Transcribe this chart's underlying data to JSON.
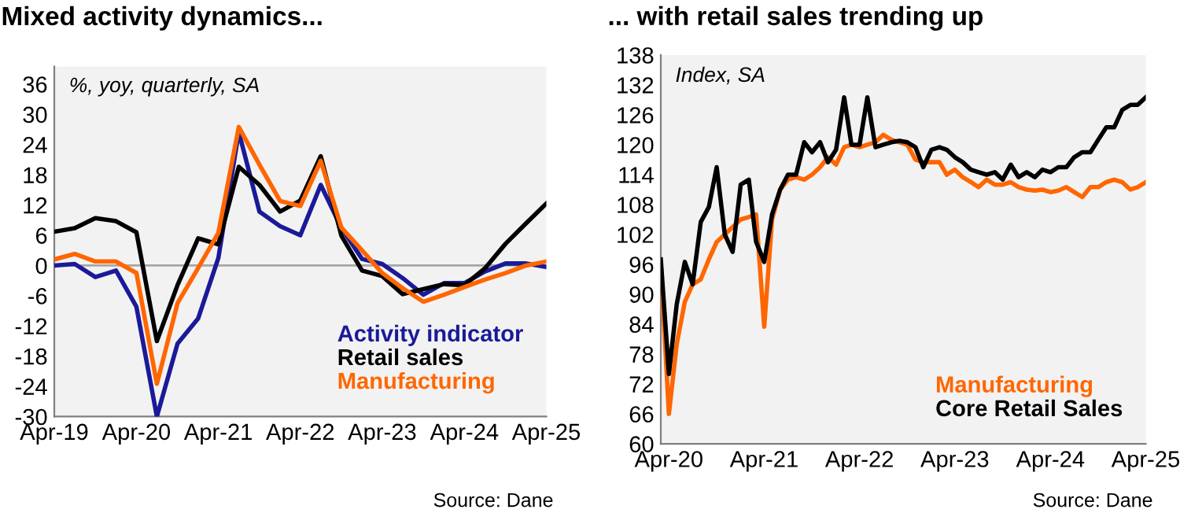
{
  "chart_data": [
    {
      "type": "line",
      "title": "Mixed activity dynamics...",
      "subtitle": "%, yoy, quarterly, SA",
      "x": [
        "2019-04",
        "2019-07",
        "2019-10",
        "2020-01",
        "2020-04",
        "2020-07",
        "2020-10",
        "2021-01",
        "2021-04",
        "2021-07",
        "2021-10",
        "2022-01",
        "2022-04",
        "2022-07",
        "2022-10",
        "2023-01",
        "2023-04",
        "2023-07",
        "2023-10",
        "2024-01",
        "2024-04",
        "2024-07",
        "2024-10",
        "2025-01",
        "2025-04"
      ],
      "series": [
        {
          "name": "Activity indicator",
          "color": "#1a1a99",
          "values": [
            0,
            0.3,
            -2.3,
            -1,
            -8.2,
            -30,
            -15.5,
            -10.5,
            1.5,
            26.5,
            10.7,
            7.8,
            6,
            16,
            7.5,
            1.3,
            0.3,
            -2.5,
            -5.8,
            -3.5,
            -3.5,
            -1.2,
            0.4,
            0.4,
            -0.3
          ]
        },
        {
          "name": "Retail sales",
          "color": "#000000",
          "values": [
            6.7,
            7.4,
            9.4,
            8.8,
            6.6,
            -15,
            -3.9,
            5.4,
            4.2,
            19.6,
            16,
            10.7,
            12.9,
            21.7,
            5.9,
            -1,
            -2.1,
            -5.7,
            -4.7,
            -3.7,
            -3.9,
            -0.6,
            4.3,
            8.4,
            12.3
          ]
        },
        {
          "name": "Manufacturing",
          "color": "#ff6600",
          "values": [
            1.2,
            2.3,
            0.8,
            0.8,
            -1.5,
            -23.5,
            -7.5,
            -0.5,
            6.5,
            27.5,
            20,
            12.8,
            11.8,
            20.8,
            7.5,
            3,
            -1.5,
            -4.5,
            -7.2,
            -5.8,
            -4.3,
            -2.8,
            -1.5,
            0,
            0.8
          ]
        }
      ],
      "xlim": [
        "2019-04",
        "2025-04"
      ],
      "xticks": [
        {
          "value": "2019-04",
          "label": "Apr-19"
        },
        {
          "value": "2020-04",
          "label": "Apr-20"
        },
        {
          "value": "2021-04",
          "label": "Apr-21"
        },
        {
          "value": "2022-04",
          "label": "Apr-22"
        },
        {
          "value": "2023-04",
          "label": "Apr-23"
        },
        {
          "value": "2024-04",
          "label": "Apr-24"
        },
        {
          "value": "2025-04",
          "label": "Apr-25"
        }
      ],
      "ylim": [
        -30,
        39.5
      ],
      "yticks": [
        -30,
        -24,
        -18,
        -12,
        -6,
        0,
        6,
        12,
        18,
        24,
        30,
        36
      ],
      "ref_lines": [
        {
          "axis": "y",
          "value": 0,
          "color": "#a6a6a6"
        }
      ],
      "grid": false,
      "legend": "bottom right",
      "marker": "none",
      "line_style": "solid",
      "annotations": [
        "Source: Dane"
      ]
    },
    {
      "type": "line",
      "title": "... with retail sales trending up",
      "subtitle": "Index, SA",
      "x": [
        "2020-03",
        "2020-04",
        "2020-05",
        "2020-06",
        "2020-07",
        "2020-08",
        "2020-09",
        "2020-10",
        "2020-11",
        "2020-12",
        "2021-01",
        "2021-02",
        "2021-03",
        "2021-04",
        "2021-05",
        "2021-06",
        "2021-07",
        "2021-08",
        "2021-09",
        "2021-10",
        "2021-11",
        "2021-12",
        "2022-01",
        "2022-02",
        "2022-03",
        "2022-04",
        "2022-05",
        "2022-06",
        "2022-07",
        "2022-08",
        "2022-09",
        "2022-10",
        "2022-11",
        "2022-12",
        "2023-01",
        "2023-02",
        "2023-03",
        "2023-04",
        "2023-05",
        "2023-06",
        "2023-07",
        "2023-08",
        "2023-09",
        "2023-10",
        "2023-11",
        "2023-12",
        "2024-01",
        "2024-02",
        "2024-03",
        "2024-04",
        "2024-05",
        "2024-06",
        "2024-07",
        "2024-08",
        "2024-09",
        "2024-10",
        "2024-11",
        "2024-12",
        "2025-01",
        "2025-02",
        "2025-03",
        "2025-04"
      ],
      "series": [
        {
          "name": "Manufacturing",
          "color": "#ff6600",
          "values": [
            96,
            66,
            80,
            88.5,
            92,
            93,
            97,
            100.5,
            102,
            103.5,
            105,
            105.5,
            106,
            83.5,
            105,
            111,
            113,
            113.5,
            113,
            114,
            115.5,
            117.5,
            116,
            119.5,
            120,
            119.5,
            120,
            120.5,
            122,
            121,
            120.5,
            120,
            117,
            116.5,
            116.5,
            116.5,
            114,
            115,
            113.5,
            112.5,
            111.5,
            113,
            112,
            112,
            112.5,
            111.5,
            111,
            110.8,
            111,
            110.5,
            110.8,
            111.5,
            110.5,
            109.5,
            111.5,
            111.5,
            112.5,
            113,
            112.5,
            111,
            111.5,
            112.5
          ]
        },
        {
          "name": "Core Retail Sales",
          "color": "#000000",
          "values": [
            97,
            74,
            88,
            96.5,
            92,
            104.5,
            107.5,
            115.5,
            102,
            98.5,
            112,
            113,
            100.5,
            96.5,
            106,
            111,
            114,
            114,
            120.5,
            118.5,
            120.5,
            116.5,
            119,
            129.5,
            120,
            120,
            129.5,
            119.5,
            120,
            120.5,
            120.8,
            120.5,
            119.5,
            115.5,
            119,
            119.5,
            119,
            117.5,
            116.5,
            115,
            114.5,
            114,
            114.5,
            113,
            116,
            113.5,
            114.5,
            113.5,
            115,
            114.5,
            115.5,
            115.5,
            117.5,
            118.5,
            118.5,
            121,
            123.5,
            123.5,
            127,
            128,
            128,
            129.5
          ]
        }
      ],
      "xlim": [
        "2020-03",
        "2025-04"
      ],
      "xticks": [
        {
          "value": "2020-04",
          "label": "Apr-20"
        },
        {
          "value": "2021-04",
          "label": "Apr-21"
        },
        {
          "value": "2022-04",
          "label": "Apr-22"
        },
        {
          "value": "2023-04",
          "label": "Apr-23"
        },
        {
          "value": "2024-04",
          "label": "Apr-24"
        },
        {
          "value": "2025-04",
          "label": "Apr-25"
        }
      ],
      "ylim": [
        60,
        138
      ],
      "yticks": [
        60,
        66,
        72,
        78,
        84,
        90,
        96,
        102,
        108,
        114,
        120,
        126,
        132,
        138
      ],
      "grid": false,
      "legend": "bottom right",
      "marker": "none",
      "line_style": "solid",
      "annotations": [
        "Source: Dane"
      ]
    }
  ]
}
